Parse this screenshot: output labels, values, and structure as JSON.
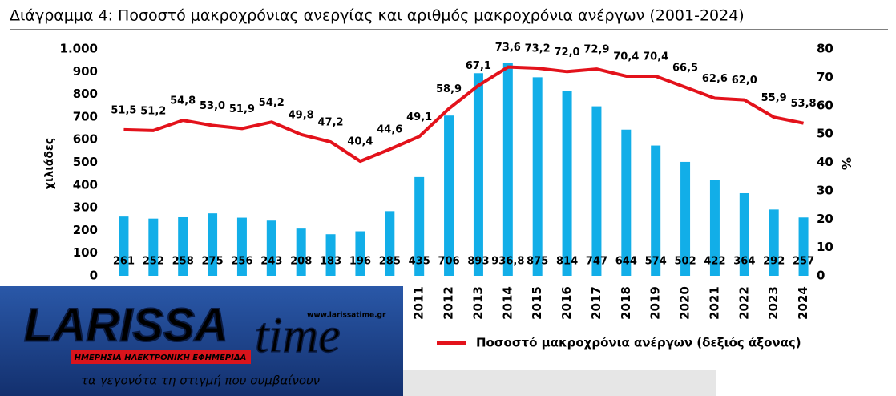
{
  "chart_data": {
    "type": "bar-line",
    "title": "Διάγραμμα 4: Ποσοστό μακροχρόνιας ανεργίας και αριθμός μακροχρόνια ανέργων (2001-2024)",
    "ylabel": "χιλιάδες",
    "y2label": "%",
    "categories": [
      null,
      null,
      null,
      null,
      null,
      null,
      null,
      null,
      null,
      null,
      "2011",
      "2012",
      "2013",
      "2014",
      "2015",
      "2016",
      "2017",
      "2018",
      "2019",
      "2020",
      "2021",
      "2022",
      "2023",
      "2024"
    ],
    "series": [
      {
        "type": "bar",
        "color": "#12aee8",
        "values": [
          261,
          252,
          258,
          275,
          256,
          243,
          208,
          183,
          196,
          285,
          435,
          706,
          893,
          936.8,
          875,
          814,
          747,
          644,
          574,
          502,
          422,
          364,
          292,
          257
        ],
        "value_labels": [
          "261",
          "252",
          "258",
          "275",
          "256",
          "243",
          "208",
          "183",
          "196",
          "285",
          "435",
          "706",
          "893",
          "936,8",
          "875",
          "814",
          "747",
          "644",
          "574",
          "502",
          "422",
          "364",
          "292",
          "257"
        ]
      },
      {
        "type": "line",
        "axis": "y2",
        "name": "Ποσοστό μακροχρόνια ανέργων (δεξιός άξονας)",
        "color": "#e3121b",
        "values": [
          51.5,
          51.2,
          54.8,
          53.0,
          51.9,
          54.2,
          49.8,
          47.2,
          40.4,
          44.6,
          49.1,
          58.9,
          67.1,
          73.6,
          73.2,
          72.0,
          72.9,
          70.4,
          70.4,
          66.5,
          62.6,
          62.0,
          55.9,
          53.8
        ],
        "value_labels": [
          "51,5",
          "51,2",
          "54,8",
          "53,0",
          "51,9",
          "54,2",
          "49,8",
          "47,2",
          "40,4",
          "44,6",
          "49,1",
          "58,9",
          "67,1",
          "73,6",
          "73,2",
          "72,0",
          "72,9",
          "70,4",
          "70,4",
          "66,5",
          "62,6",
          "62,0",
          "55,9",
          "53,8"
        ]
      }
    ],
    "ylim": [
      0,
      1000
    ],
    "yticks": [
      0,
      100,
      200,
      300,
      400,
      500,
      600,
      700,
      800,
      900,
      {
        "value": 1000,
        "label": "1.000"
      }
    ],
    "y2lim": [
      0,
      80
    ],
    "y2ticks": [
      0,
      10,
      20,
      30,
      40,
      50,
      60,
      70,
      80
    ],
    "grid": false
  },
  "overlay": {
    "brand_main": "LARISSA",
    "brand_script": "time",
    "url": "www.larissatime.gr",
    "tagline": "ΗΜΕΡΗΣΙΑ ΗΛΕΚΤΡΟΝΙΚΗ ΕΦΗΜΕΡΙΔΑ",
    "slogan": "τα γεγονότα τη στιγμή που συμβαίνουν"
  }
}
